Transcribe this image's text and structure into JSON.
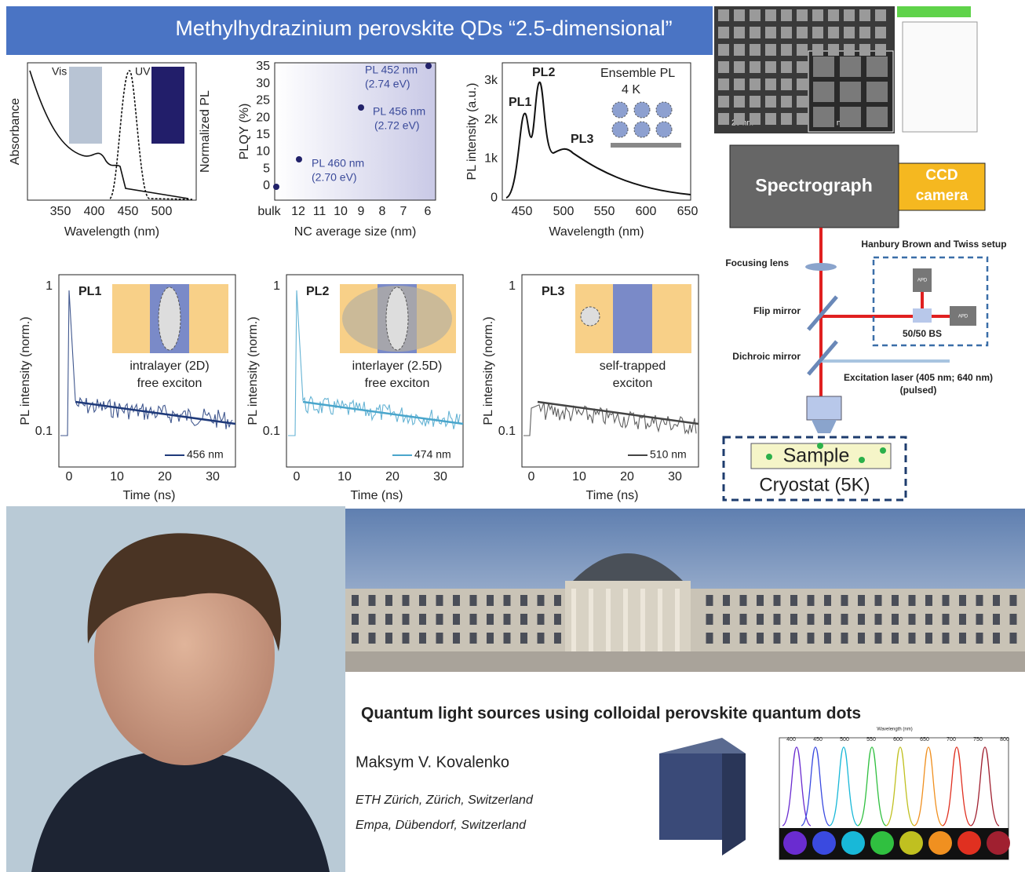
{
  "banner": {
    "title": "Methylhydrazinium perovskite QDs “2.5-dimensional”"
  },
  "top_plots": [
    {
      "y_label": "Absorbance",
      "y2_label": "Normalized PL",
      "x_label": "Wavelength (nm)",
      "x_ticks": [
        350,
        400,
        450,
        500
      ],
      "notes": [
        "Vis",
        "UV"
      ]
    },
    {
      "y_label": "PLQY (%)",
      "x_label": "NC average size (nm)",
      "y_ticks": [
        35,
        30,
        25,
        20,
        15,
        10,
        5,
        0
      ],
      "x_ticks": [
        "bulk",
        12,
        11,
        10,
        9,
        8,
        7,
        6
      ],
      "notes": [
        "PL 452 nm",
        "(2.74 eV)",
        "PL 456 nm",
        "(2.72 eV)",
        "PL 460 nm",
        "(2.70 eV)"
      ]
    },
    {
      "y_label": "PL intensity (a.u.)",
      "x_label": "Wavelength (nm)",
      "y_ticks": [
        "3k",
        "2k",
        "1k",
        0
      ],
      "x_ticks": [
        450,
        500,
        550,
        600,
        650
      ],
      "notes": [
        "PL1",
        "PL2",
        "PL3",
        "Ensemble PL",
        "4 K"
      ]
    }
  ],
  "decay_plots": [
    {
      "label": "PL1",
      "desc": [
        "intralayer (2D)",
        "free exciton"
      ],
      "legend": "456 nm",
      "color": "#1f3a7a",
      "y_label": "PL intensity (norm.)",
      "x_label": "Time (ns)",
      "y_ticks": [
        1,
        0.1
      ],
      "x_ticks": [
        0,
        10,
        20,
        30
      ]
    },
    {
      "label": "PL2",
      "desc": [
        "interlayer (2.5D)",
        "free exciton"
      ],
      "legend": "474 nm",
      "color": "#4aa6cc",
      "y_label": "PL intensity (norm.)",
      "x_label": "Time (ns)",
      "y_ticks": [
        1,
        0.1
      ],
      "x_ticks": [
        0,
        10,
        20,
        30
      ]
    },
    {
      "label": "PL3",
      "desc": [
        "self-trapped",
        "exciton"
      ],
      "legend": "510 nm",
      "color": "#444444",
      "y_label": "PL intensity (norm.)",
      "x_label": "Time (ns)",
      "y_ticks": [
        1,
        0.1
      ],
      "x_ticks": [
        0,
        10,
        20,
        30
      ]
    }
  ],
  "tem": {
    "scale_labels": [
      "20 nm",
      "10 nm"
    ]
  },
  "setup": {
    "spectrograph": "Spectrograph",
    "ccd": [
      "CCD",
      "camera"
    ],
    "hbt": "Hanbury Brown and Twiss setup",
    "focusing_lens": "Focusing lens",
    "flip_mirror": "Flip mirror",
    "dichroic_mirror": "Dichroic mirror",
    "bs": "50/50 BS",
    "apd": [
      "APD",
      "APD"
    ],
    "laser": [
      "Excitation laser (405 nm; 640 nm)",
      "(pulsed)"
    ],
    "sample": "Sample",
    "cryostat": "Cryostat (5K)"
  },
  "talk": {
    "title": "Quantum light sources using colloidal perovskite quantum dots",
    "author": "Maksym V. Kovalenko",
    "affiliations": [
      "ETH Zürich, Zürich, Switzerland",
      "Empa,  Dübendorf, Switzerland"
    ],
    "spectra_x_label": "Wavelength (nm)",
    "spectra_x_ticks": [
      400,
      450,
      500,
      550,
      600,
      650,
      700,
      750,
      800
    ]
  }
}
